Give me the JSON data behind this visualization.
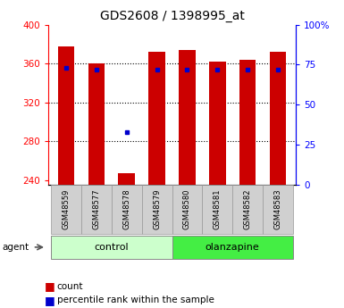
{
  "title": "GDS2608 / 1398995_at",
  "samples": [
    "GSM48559",
    "GSM48577",
    "GSM48578",
    "GSM48579",
    "GSM48580",
    "GSM48581",
    "GSM48582",
    "GSM48583"
  ],
  "groups": [
    "control",
    "control",
    "control",
    "control",
    "olanzapine",
    "olanzapine",
    "olanzapine",
    "olanzapine"
  ],
  "count_values": [
    378,
    360,
    247,
    372,
    374,
    362,
    364,
    372
  ],
  "percentile_values": [
    73,
    72,
    33,
    72,
    72,
    72,
    72,
    72
  ],
  "ylim_left": [
    235,
    400
  ],
  "ylim_right": [
    0,
    100
  ],
  "yticks_left": [
    240,
    280,
    320,
    360,
    400
  ],
  "yticks_right": [
    0,
    25,
    50,
    75,
    100
  ],
  "ytick_labels_right": [
    "0",
    "25",
    "50",
    "75",
    "100%"
  ],
  "bar_color": "#cc0000",
  "dot_color": "#0000cc",
  "control_color": "#ccffcc",
  "olanzapine_color": "#44ee44",
  "sample_bg_color": "#d0d0d0",
  "legend_count": "count",
  "legend_percentile": "percentile rank within the sample",
  "bar_width": 0.55
}
